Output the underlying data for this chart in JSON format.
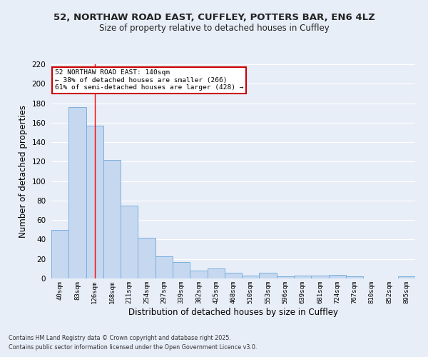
{
  "title1": "52, NORTHAW ROAD EAST, CUFFLEY, POTTERS BAR, EN6 4LZ",
  "title2": "Size of property relative to detached houses in Cuffley",
  "xlabel": "Distribution of detached houses by size in Cuffley",
  "ylabel": "Number of detached properties",
  "categories": [
    "40sqm",
    "83sqm",
    "126sqm",
    "168sqm",
    "211sqm",
    "254sqm",
    "297sqm",
    "339sqm",
    "382sqm",
    "425sqm",
    "468sqm",
    "510sqm",
    "553sqm",
    "596sqm",
    "639sqm",
    "681sqm",
    "724sqm",
    "767sqm",
    "810sqm",
    "852sqm",
    "895sqm"
  ],
  "values": [
    50,
    176,
    157,
    122,
    75,
    42,
    23,
    17,
    8,
    10,
    6,
    3,
    6,
    2,
    3,
    3,
    4,
    2,
    0,
    0,
    2
  ],
  "bar_color": "#c5d8f0",
  "bar_edge_color": "#7aaedc",
  "background_color": "#e8eef8",
  "grid_color": "#ffffff",
  "redline_x": 2.0,
  "annotation_line1": "52 NORTHAW ROAD EAST: 140sqm",
  "annotation_line2": "← 38% of detached houses are smaller (266)",
  "annotation_line3": "61% of semi-detached houses are larger (428) →",
  "annotation_box_color": "#ffffff",
  "annotation_box_edge": "#cc0000",
  "footer1": "Contains HM Land Registry data © Crown copyright and database right 2025.",
  "footer2": "Contains public sector information licensed under the Open Government Licence v3.0.",
  "ylim": [
    0,
    220
  ],
  "yticks": [
    0,
    20,
    40,
    60,
    80,
    100,
    120,
    140,
    160,
    180,
    200,
    220
  ]
}
